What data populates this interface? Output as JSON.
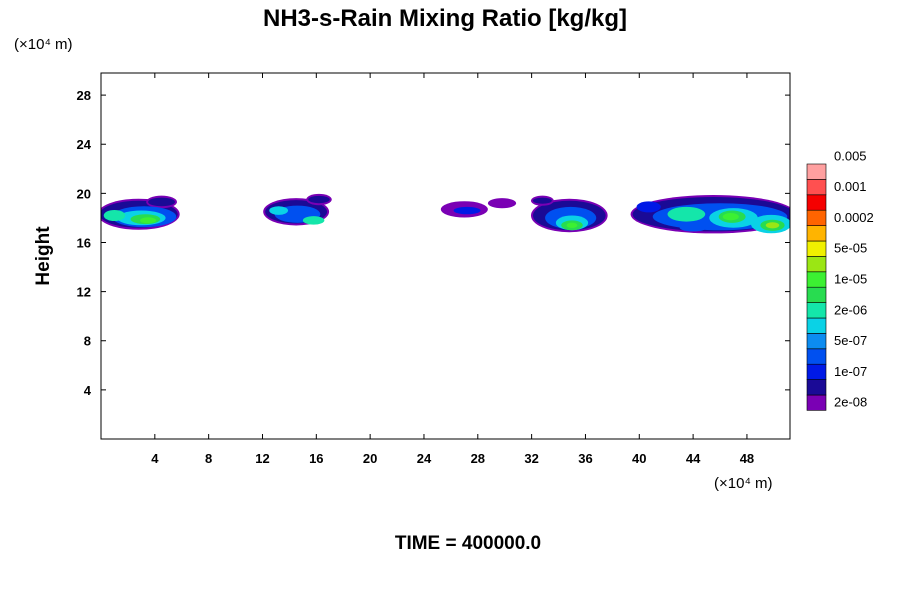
{
  "chart_data": {
    "type": "heatmap",
    "title": "NH3-s-Rain Mixing Ratio [kg/kg]",
    "xlabel": "",
    "ylabel": "Height",
    "x_unit_label": "(×10⁴ m)",
    "y_unit_label": "(×10⁴ m)",
    "xlim": [
      0,
      51.2
    ],
    "ylim": [
      0,
      29.8
    ],
    "x_ticks": [
      4,
      8,
      12,
      16,
      20,
      24,
      28,
      32,
      36,
      40,
      44,
      48
    ],
    "y_ticks": [
      4,
      8,
      12,
      16,
      20,
      24,
      28
    ],
    "grid": false,
    "time_label": "TIME = 400000.0",
    "colorbar": {
      "colors": [
        "#7a00b4",
        "#1a0a96",
        "#0019e6",
        "#0050f0",
        "#0c8cf0",
        "#0ad2e6",
        "#14e6aa",
        "#28dc50",
        "#3cf032",
        "#9be614",
        "#f0f000",
        "#ffb400",
        "#ff6400",
        "#f50000",
        "#ff5050",
        "#ffa0a0"
      ],
      "labels": [
        "2e-08",
        "1e-07",
        "5e-07",
        "2e-06",
        "1e-05",
        "5e-05",
        "0.0002",
        "0.001",
        "0.005"
      ]
    },
    "cloud_regions": [
      {
        "x_range": [
          0,
          5.8
        ],
        "y_range": [
          16.8,
          19.7
        ],
        "peak_level": 8,
        "blobs": [
          {
            "x": 2.8,
            "y": 18.3,
            "rx": 2.9,
            "ry": 1.1,
            "level": 1
          },
          {
            "x": 3.2,
            "y": 18.1,
            "rx": 2.4,
            "ry": 0.85,
            "level": 3
          },
          {
            "x": 3.0,
            "y": 18.0,
            "rx": 1.8,
            "ry": 0.6,
            "level": 5
          },
          {
            "x": 1.0,
            "y": 18.2,
            "rx": 0.8,
            "ry": 0.45,
            "level": 6
          },
          {
            "x": 3.3,
            "y": 17.9,
            "rx": 1.1,
            "ry": 0.4,
            "level": 7
          },
          {
            "x": 3.5,
            "y": 17.8,
            "rx": 0.6,
            "ry": 0.25,
            "level": 8
          },
          {
            "x": 4.5,
            "y": 19.3,
            "rx": 1.0,
            "ry": 0.35,
            "level": 1
          }
        ]
      },
      {
        "x_range": [
          12.0,
          17.5
        ],
        "y_range": [
          17.2,
          19.8
        ],
        "peak_level": 6,
        "blobs": [
          {
            "x": 14.5,
            "y": 18.5,
            "rx": 2.3,
            "ry": 0.95,
            "level": 1
          },
          {
            "x": 14.6,
            "y": 18.3,
            "rx": 1.7,
            "ry": 0.7,
            "level": 3
          },
          {
            "x": 13.2,
            "y": 18.6,
            "rx": 0.7,
            "ry": 0.35,
            "level": 5
          },
          {
            "x": 15.8,
            "y": 17.8,
            "rx": 0.8,
            "ry": 0.35,
            "level": 6
          },
          {
            "x": 16.2,
            "y": 19.5,
            "rx": 0.8,
            "ry": 0.3,
            "level": 1
          }
        ]
      },
      {
        "x_range": [
          25.0,
          31.0
        ],
        "y_range": [
          18.0,
          19.6
        ],
        "peak_level": 2,
        "blobs": [
          {
            "x": 27.0,
            "y": 18.7,
            "rx": 1.6,
            "ry": 0.5,
            "level": 0
          },
          {
            "x": 27.2,
            "y": 18.6,
            "rx": 1.0,
            "ry": 0.3,
            "level": 2
          },
          {
            "x": 29.8,
            "y": 19.2,
            "rx": 0.9,
            "ry": 0.25,
            "level": 0
          }
        ]
      },
      {
        "x_range": [
          31.0,
          38.5
        ],
        "y_range": [
          16.8,
          19.7
        ],
        "peak_level": 8,
        "blobs": [
          {
            "x": 34.8,
            "y": 18.2,
            "rx": 2.7,
            "ry": 1.2,
            "level": 1
          },
          {
            "x": 34.9,
            "y": 18.0,
            "rx": 1.9,
            "ry": 0.9,
            "level": 3
          },
          {
            "x": 35.0,
            "y": 17.6,
            "rx": 1.2,
            "ry": 0.6,
            "level": 5
          },
          {
            "x": 35.0,
            "y": 17.4,
            "rx": 0.8,
            "ry": 0.4,
            "level": 7
          },
          {
            "x": 35.0,
            "y": 17.4,
            "rx": 0.4,
            "ry": 0.22,
            "level": 8
          },
          {
            "x": 32.8,
            "y": 19.4,
            "rx": 0.7,
            "ry": 0.25,
            "level": 1
          }
        ]
      },
      {
        "x_range": [
          39.0,
          51.2
        ],
        "y_range": [
          16.6,
          19.9
        ],
        "peak_level": 9,
        "blobs": [
          {
            "x": 45.5,
            "y": 18.3,
            "rx": 6.0,
            "ry": 1.4,
            "level": 1
          },
          {
            "x": 46.0,
            "y": 18.1,
            "rx": 5.0,
            "ry": 1.1,
            "level": 3
          },
          {
            "x": 40.7,
            "y": 18.9,
            "rx": 0.9,
            "ry": 0.45,
            "level": 2
          },
          {
            "x": 43.5,
            "y": 18.3,
            "rx": 1.4,
            "ry": 0.6,
            "level": 6
          },
          {
            "x": 47.0,
            "y": 18.0,
            "rx": 1.8,
            "ry": 0.8,
            "level": 5
          },
          {
            "x": 46.9,
            "y": 18.1,
            "rx": 1.0,
            "ry": 0.5,
            "level": 7
          },
          {
            "x": 46.8,
            "y": 18.1,
            "rx": 0.6,
            "ry": 0.3,
            "level": 8
          },
          {
            "x": 49.8,
            "y": 17.5,
            "rx": 1.5,
            "ry": 0.75,
            "level": 5
          },
          {
            "x": 49.9,
            "y": 17.4,
            "rx": 0.9,
            "ry": 0.45,
            "level": 7
          },
          {
            "x": 49.9,
            "y": 17.4,
            "rx": 0.5,
            "ry": 0.25,
            "level": 9
          },
          {
            "x": 44.0,
            "y": 17.2,
            "rx": 1.0,
            "ry": 0.3,
            "level": 3
          }
        ]
      }
    ]
  }
}
